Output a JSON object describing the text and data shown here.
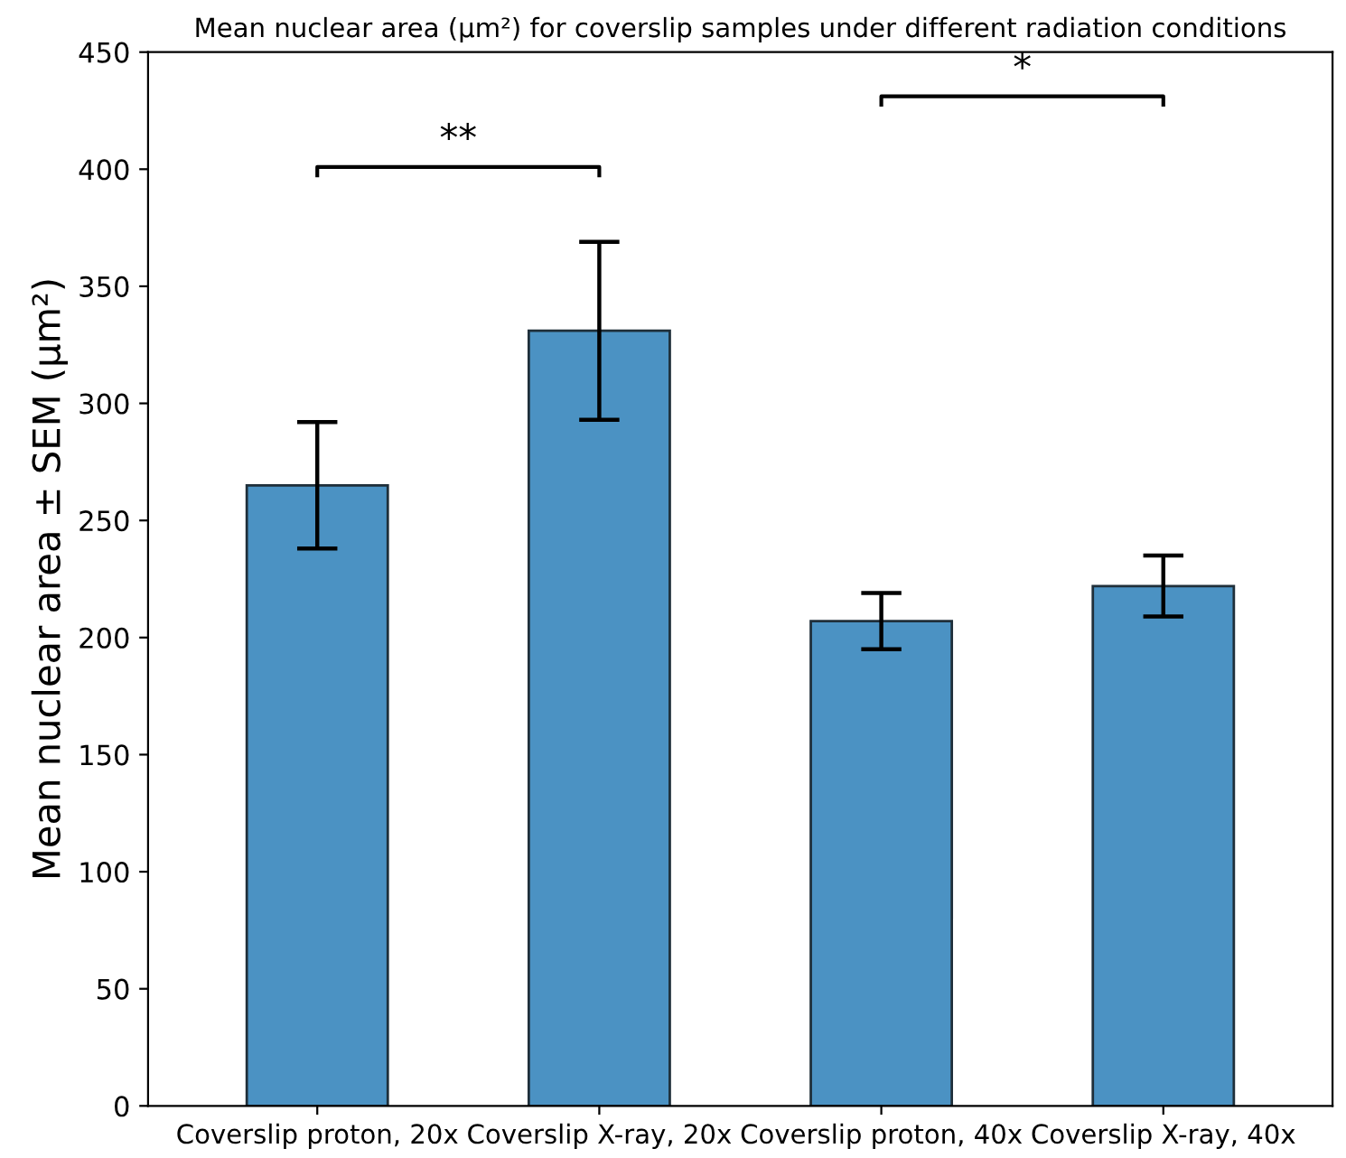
{
  "chart_data": {
    "type": "bar",
    "title": "Mean nuclear area (µm²) for coverslip samples under different radiation conditions",
    "ylabel": "Mean nuclear area ± SEM (µm²)",
    "categories": [
      "Coverslip proton, 20x",
      "Coverslip X-ray, 20x",
      "Coverslip proton, 40x",
      "Coverslip X-ray, 40x"
    ],
    "values": [
      265,
      331,
      207,
      222
    ],
    "errors": [
      27,
      38,
      12,
      13
    ],
    "color": "#4b92c3",
    "ylim": [
      0,
      450
    ],
    "yticks": [
      0,
      50,
      100,
      150,
      200,
      250,
      300,
      350,
      400,
      450
    ],
    "grid": false,
    "annotations": [
      "**",
      "*"
    ]
  }
}
